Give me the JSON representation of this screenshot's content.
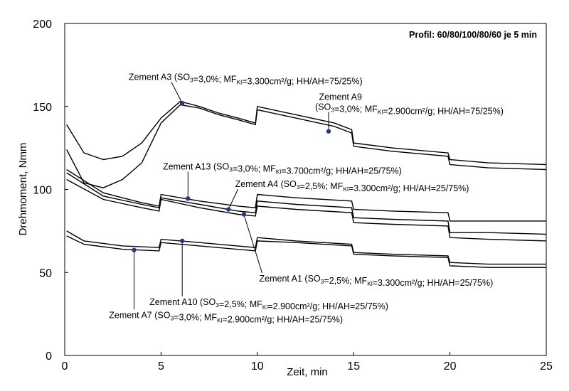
{
  "chart_data": {
    "type": "line",
    "title": "",
    "profile_note": "Profil: 60/80/100/80/60 je 5 min",
    "xlabel": "Zeit, min",
    "ylabel": "Drehmoment, Nmm",
    "xlim": [
      0,
      25
    ],
    "ylim": [
      0,
      200
    ],
    "xticks": [
      0,
      5,
      10,
      15,
      20,
      25
    ],
    "yticks": [
      0,
      50,
      100,
      150,
      200
    ],
    "grid": false,
    "legend": "none",
    "line_color": "#000000",
    "marker_color": "#1f3a93",
    "series": [
      {
        "name": "Zement A3 (SO3=3,0%; MFKl=3.300cm²/g; HH/AH=75/25%)",
        "x": [
          0.1,
          1,
          2,
          3,
          4,
          5,
          6,
          7,
          8,
          9,
          9.9,
          10,
          12,
          14,
          14.9,
          15,
          17,
          19.9,
          20,
          22,
          25
        ],
        "y": [
          139,
          122,
          118,
          120,
          128,
          143,
          153,
          150,
          146,
          143,
          140,
          150,
          145,
          140,
          136,
          128,
          125,
          122,
          118,
          116,
          115
        ]
      },
      {
        "name": "Zement A9 (SO3=3,0%; MFKl=2.900cm²/g; HH/AH=75/25%)",
        "x": [
          0.1,
          1,
          2,
          3,
          4,
          5,
          6,
          7,
          8,
          9,
          9.9,
          10,
          12,
          14,
          14.9,
          15,
          17,
          19.9,
          20,
          22,
          25
        ],
        "y": [
          124,
          104,
          101,
          106,
          116,
          140,
          151,
          149,
          145,
          142,
          139,
          148,
          143,
          138,
          134,
          126,
          123,
          120,
          115,
          113,
          112
        ]
      },
      {
        "name": "Zement A13 (SO3=3,0%; MFKl=3.700cm²/g; HH/AH=25/75%)",
        "x": [
          0.1,
          2,
          4,
          4.9,
          5,
          7,
          9,
          9.9,
          10,
          12,
          14.9,
          15,
          17,
          19.9,
          20,
          22,
          25
        ],
        "y": [
          112,
          98,
          92,
          90,
          97,
          93,
          90,
          89,
          97,
          95,
          93,
          88,
          87,
          86,
          81,
          81,
          81
        ]
      },
      {
        "name": "Zement A4 (SO3=2,5%; MFKl=3.300cm²/g; HH/AH=25/75%)",
        "x": [
          0.1,
          2,
          4,
          4.9,
          5,
          7,
          9,
          9.9,
          10,
          12,
          14.9,
          15,
          17,
          19.9,
          20,
          22,
          25
        ],
        "y": [
          110,
          96,
          91,
          89,
          95,
          91,
          87,
          86,
          93,
          91,
          89,
          83,
          82,
          81,
          74,
          74,
          73
        ]
      },
      {
        "name": "Zement A1 (SO3=2,5%; MFKl=3.300cm²/g; HH/AH=25/75%)",
        "x": [
          0.1,
          2,
          4,
          4.9,
          5,
          7,
          9,
          9.9,
          10,
          12,
          14.9,
          15,
          17,
          19.9,
          20,
          22,
          25
        ],
        "y": [
          106,
          94,
          89,
          87,
          94,
          89,
          85,
          84,
          90,
          88,
          86,
          80,
          79,
          78,
          71,
          70,
          69
        ]
      },
      {
        "name": "Zement A10 (SO3=2,5%; MFKl=2.900cm²/g; HH/AH=25/75%)",
        "x": [
          0.1,
          1,
          3,
          4.9,
          5,
          7,
          9.9,
          10,
          12,
          14.9,
          15,
          17,
          19.9,
          20,
          22,
          25
        ],
        "y": [
          75,
          69,
          66,
          65,
          70,
          68,
          65,
          71,
          69,
          67,
          62,
          61,
          60,
          56,
          55,
          55
        ]
      },
      {
        "name": "Zement A7 (SO3=3,0%; MFKl=2.900cm²/g; HH/AH=25/75%)",
        "x": [
          0.1,
          1,
          3,
          4.9,
          5,
          7,
          9.9,
          10,
          12,
          14.9,
          15,
          17,
          19.9,
          20,
          22,
          25
        ],
        "y": [
          72,
          67,
          64,
          63,
          68,
          66,
          63,
          69,
          68,
          66,
          61,
          60,
          59,
          54,
          53,
          53
        ]
      }
    ],
    "annotations": [
      {
        "parts": [
          {
            "t": "Zement A3 (SO"
          },
          {
            "t": "3",
            "sub": true
          },
          {
            "t": "=3,0%; MF"
          },
          {
            "t": "Kl",
            "sub": true
          },
          {
            "t": "=3.300cm²/g; HH/AH=75/25%)"
          }
        ],
        "lx": 3.32,
        "ly": 166,
        "point": [
          6.1,
          152
        ]
      },
      {
        "parts": [
          {
            "t": "Zement A9"
          }
        ],
        "lx": 13.2,
        "ly": 154,
        "point": null
      },
      {
        "parts": [
          {
            "t": "(SO"
          },
          {
            "t": "3",
            "sub": true
          },
          {
            "t": "=3,0%; MF"
          },
          {
            "t": "Kl",
            "sub": true
          },
          {
            "t": "=2.900cm²/g;  HH/AH=75/25%)"
          }
        ],
        "lx": 13.0,
        "ly": 148,
        "point": [
          13.7,
          135
        ]
      },
      {
        "parts": [
          {
            "t": "Zement A13 (SO"
          },
          {
            "t": "3",
            "sub": true
          },
          {
            "t": "=3,0%; MF"
          },
          {
            "t": "Kl",
            "sub": true
          },
          {
            "t": "=3.700cm²/g;  HH/AH=25/75%)"
          }
        ],
        "lx": 5.1,
        "ly": 112,
        "point": [
          6.4,
          94.5
        ]
      },
      {
        "parts": [
          {
            "t": "Zement A4 (SO"
          },
          {
            "t": "3",
            "sub": true
          },
          {
            "t": "=2,5%; MF"
          },
          {
            "t": "Kl",
            "sub": true
          },
          {
            "t": "=3.300cm²/g;  HH/AH=25/75%)"
          }
        ],
        "lx": 8.85,
        "ly": 101.5,
        "point": [
          8.5,
          88
        ]
      },
      {
        "parts": [
          {
            "t": "Zement A1 (SO"
          },
          {
            "t": "3",
            "sub": true
          },
          {
            "t": "=2,5%; MF"
          },
          {
            "t": "Kl",
            "sub": true
          },
          {
            "t": "=3.300cm²/g; HH/AH=25/75%)"
          }
        ],
        "lx": 10.1,
        "ly": 44.5,
        "point": [
          9.3,
          85
        ]
      },
      {
        "parts": [
          {
            "t": "Zement A10 (SO"
          },
          {
            "t": "3",
            "sub": true
          },
          {
            "t": "=2,5%; MF"
          },
          {
            "t": "Kl",
            "sub": true
          },
          {
            "t": "=2.900cm²/g; HH/AH=25/75%)"
          }
        ],
        "lx": 4.4,
        "ly": 30.5,
        "point": [
          6.1,
          69
        ]
      },
      {
        "parts": [
          {
            "t": "Zement A7 (SO"
          },
          {
            "t": "3",
            "sub": true
          },
          {
            "t": "=3,0%; MF"
          },
          {
            "t": "Kl",
            "sub": true
          },
          {
            "t": "=2.900cm²/g; HH/AH=25/75%)"
          }
        ],
        "lx": 2.3,
        "ly": 22.5,
        "point": [
          3.6,
          63.5
        ]
      }
    ]
  }
}
